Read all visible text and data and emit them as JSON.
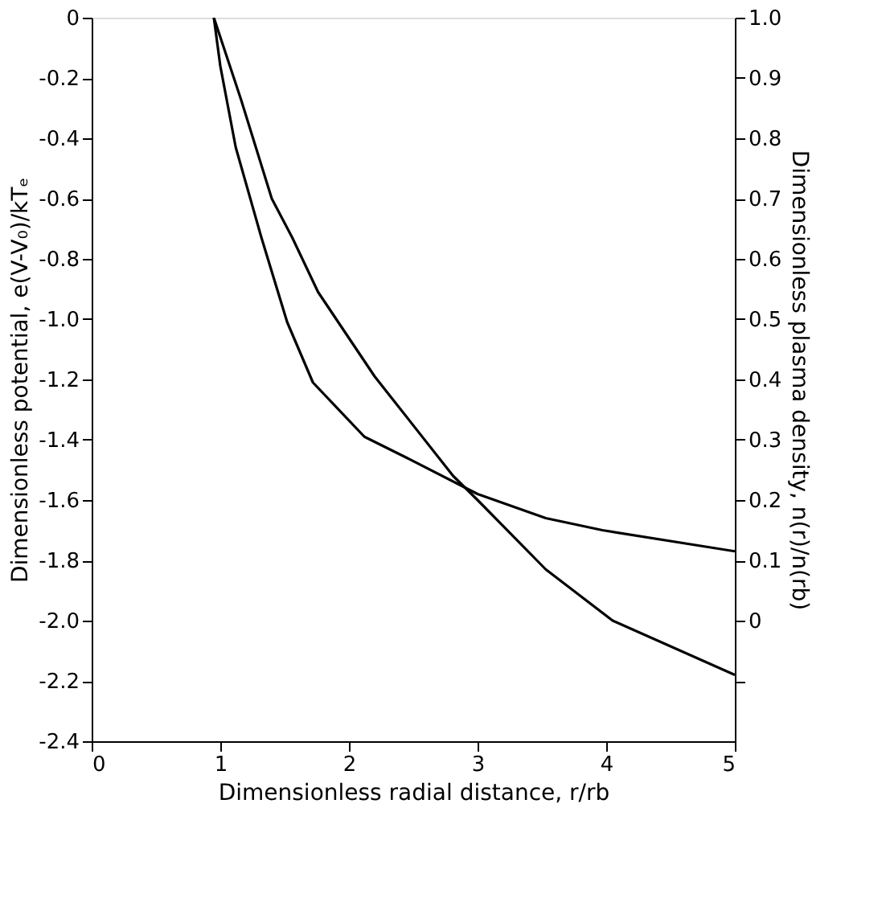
{
  "chart_data": {
    "type": "line",
    "xlabel": "Dimensionless radial distance, r/rb",
    "ylabel": "Dimensionless potential, e(V-V₀)/kTₑ",
    "y2label": "Dimensionless plasma density, n(r)/n(rb)",
    "xlim": [
      0,
      5
    ],
    "xticks": [
      0,
      1,
      2,
      3,
      4,
      5
    ],
    "ylim": [
      -2.4,
      0
    ],
    "yticks": [
      0,
      -0.2,
      -0.4,
      -0.6,
      -0.8,
      {
        "value": -1.0,
        "label": "-1.0"
      },
      -1.2,
      -1.4,
      -1.6,
      -1.8,
      {
        "value": -2.0,
        "label": "-2.0"
      },
      -2.2,
      -2.4
    ],
    "y2lim": [
      -0.2,
      1.0
    ],
    "y2ticks": [
      {
        "value": -0.1,
        "label": null
      },
      0,
      0.1,
      0.2,
      0.3,
      0.4,
      0.5,
      0.6,
      0.7,
      0.8,
      0.9,
      {
        "value": 1.0,
        "label": "1.0"
      }
    ],
    "grid": false,
    "legend": false,
    "marker": "none",
    "line_style": "solid",
    "series": [
      {
        "color": "#000000",
        "x": [
          0.95,
          1.16,
          1.4,
          1.56,
          1.76,
          2.2,
          2.81,
          3.0,
          3.53,
          4.05,
          5.0
        ],
        "values": [
          0,
          -0.27,
          -0.6,
          -0.73,
          -0.91,
          -1.19,
          -1.52,
          -1.6,
          -1.83,
          -2.0,
          -2.18
        ]
      },
      {
        "color": "#000000",
        "axis": "y2",
        "x": [
          0.95,
          1.0,
          1.12,
          1.32,
          1.52,
          1.72,
          2.12,
          2.45,
          3.0,
          3.53,
          3.97,
          5.0
        ],
        "values": [
          1.0,
          0.92,
          0.785,
          0.635,
          0.495,
          0.395,
          0.305,
          0.27,
          0.21,
          0.17,
          0.15,
          0.115
        ]
      }
    ]
  }
}
